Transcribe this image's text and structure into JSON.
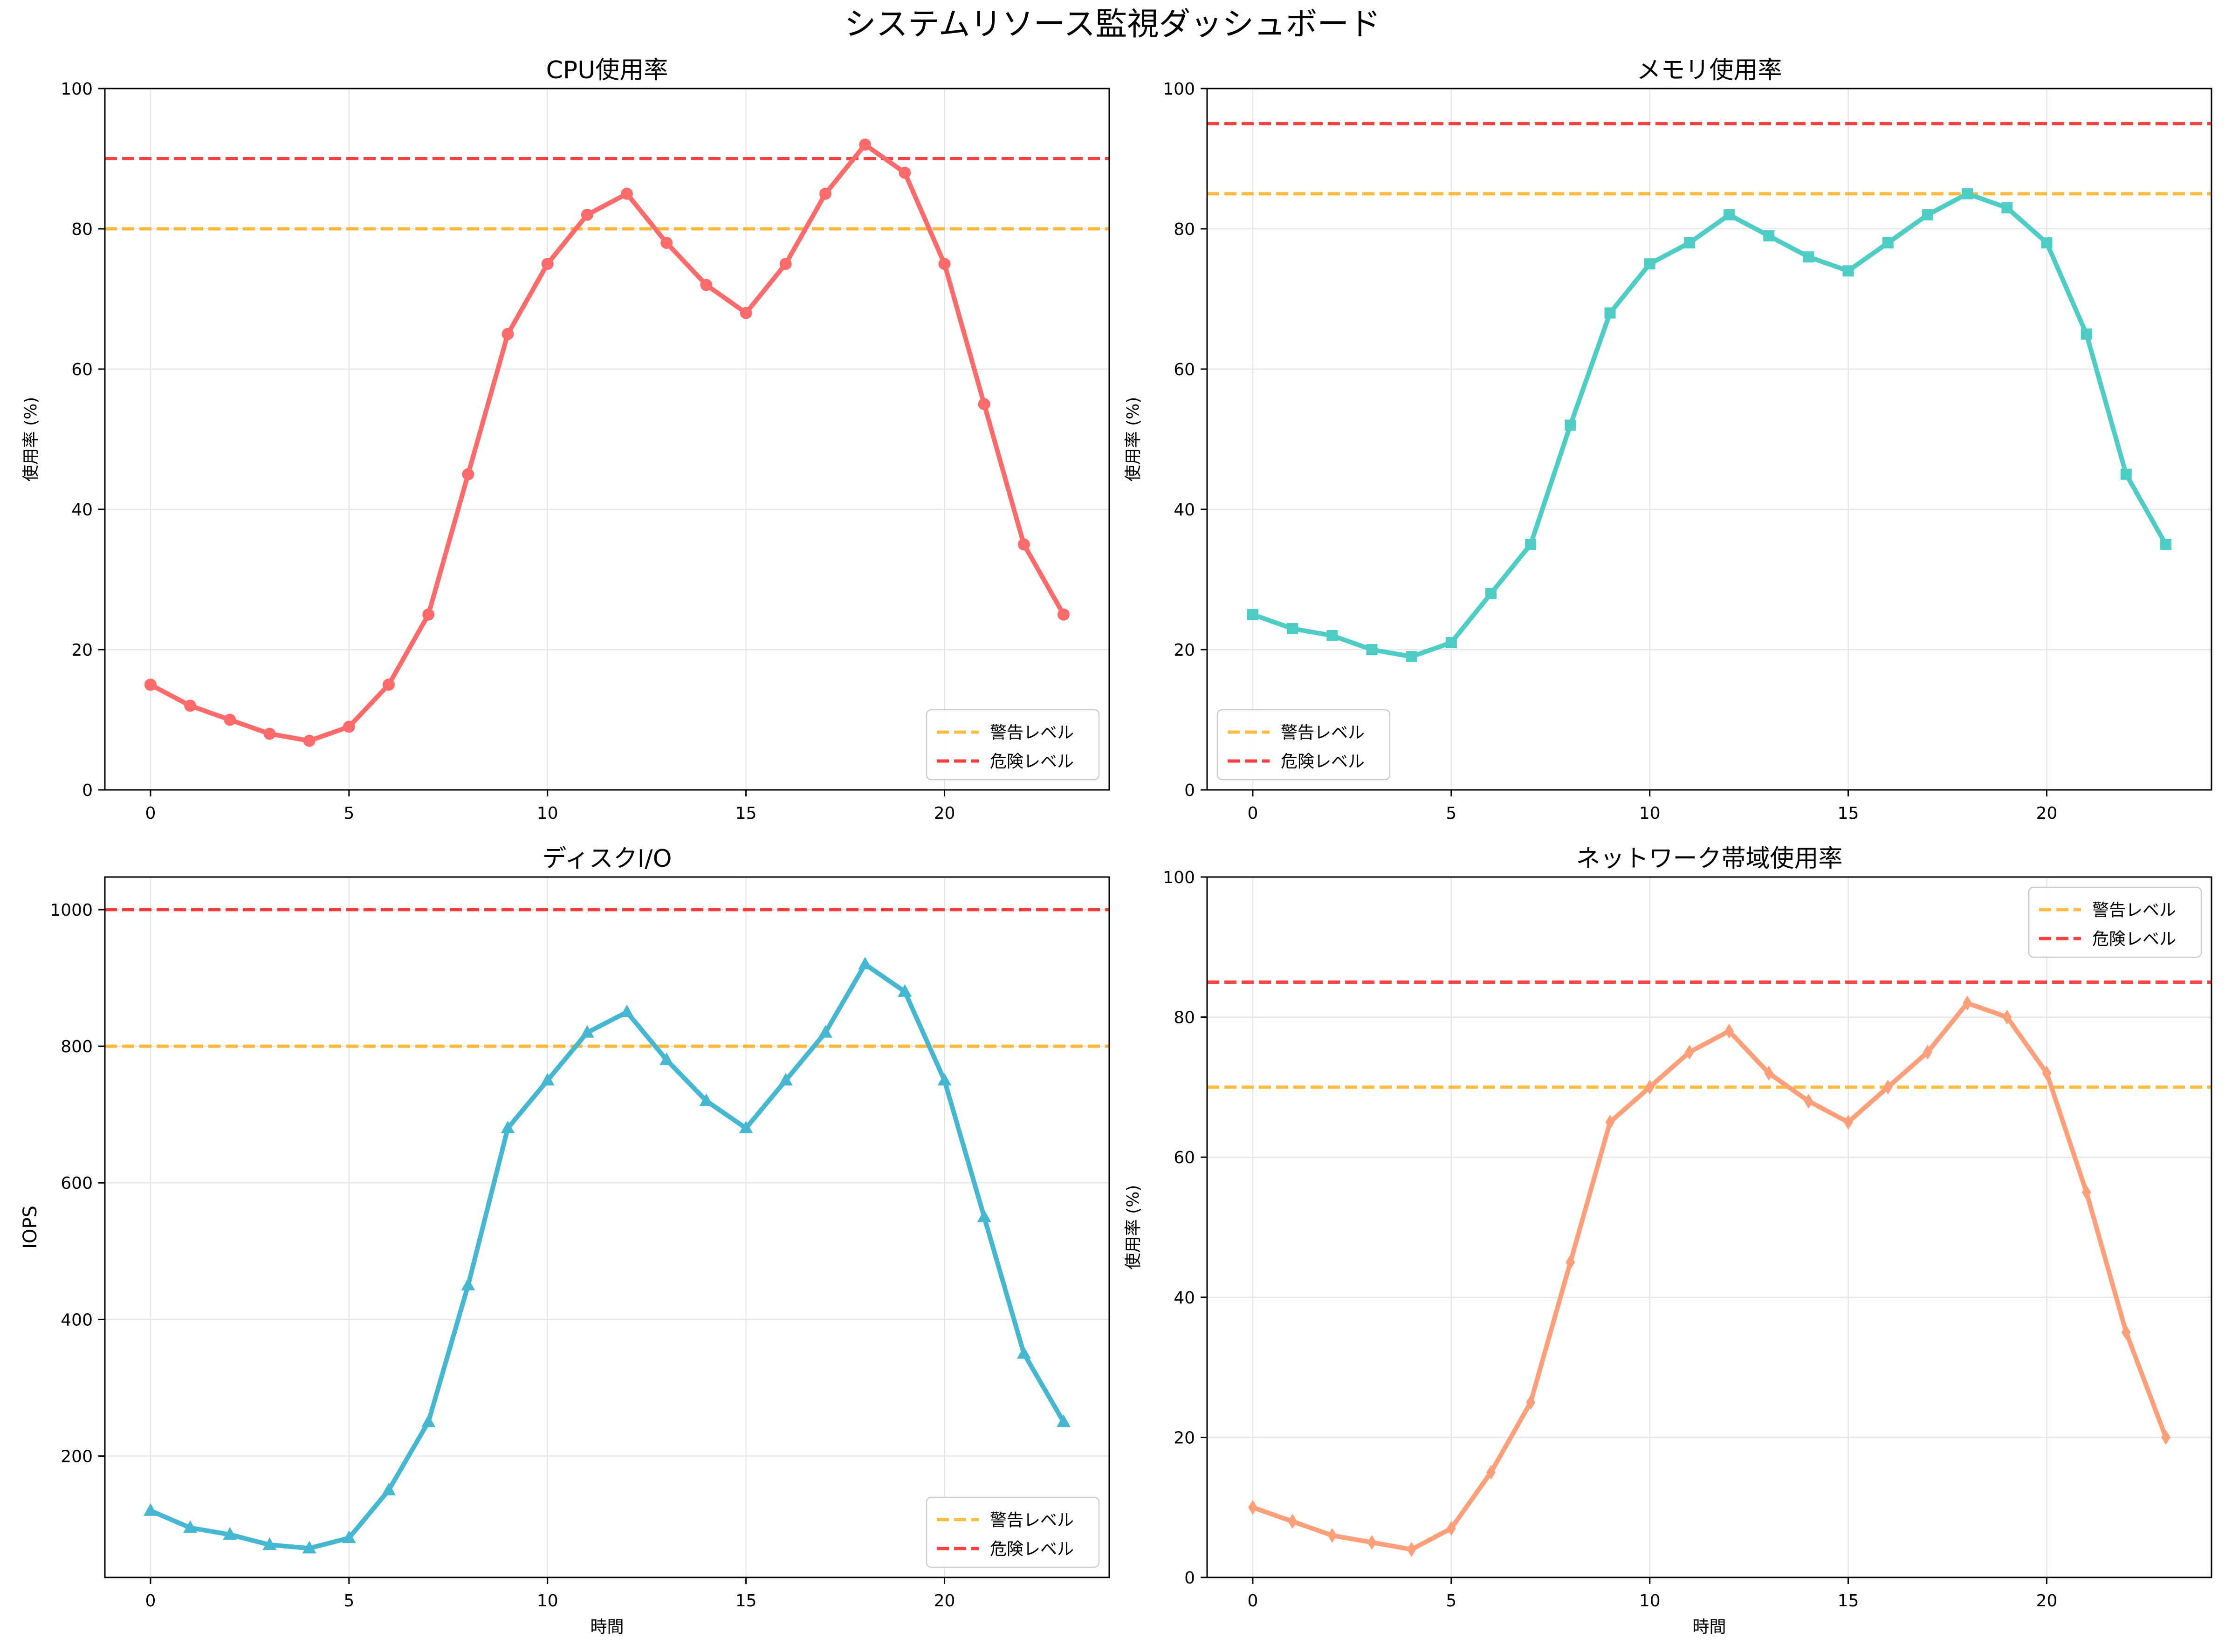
{
  "figure": {
    "suptitle": "システムリソース監視ダッシュボード"
  },
  "legend_labels": {
    "warning": "警告レベル",
    "danger": "危険レベル"
  },
  "colors": {
    "warning": "#ffa500",
    "danger": "#ff0000",
    "grid": "#e6e6e6"
  },
  "chart_data": [
    {
      "type": "line",
      "title": "CPU使用率",
      "xlabel": "",
      "ylabel": "使用率 (%)",
      "x": [
        0,
        1,
        2,
        3,
        4,
        5,
        6,
        7,
        8,
        9,
        10,
        11,
        12,
        13,
        14,
        15,
        16,
        17,
        18,
        19,
        20,
        21,
        22,
        23
      ],
      "xlim": [
        -1.15,
        24.15
      ],
      "ylim": [
        0,
        100
      ],
      "xticks": [
        0,
        5,
        10,
        15,
        20
      ],
      "yticks": [
        0,
        20,
        40,
        60,
        80,
        100
      ],
      "color": "#ff6b6b",
      "marker": "circle",
      "series": [
        {
          "values": [
            15,
            12,
            10,
            8,
            7,
            9,
            15,
            25,
            45,
            65,
            75,
            82,
            85,
            78,
            72,
            68,
            75,
            85,
            92,
            88,
            75,
            55,
            35,
            25
          ]
        }
      ],
      "thresholds": {
        "warning": 80,
        "danger": 90
      },
      "legend": "lower-right",
      "grid": true
    },
    {
      "type": "line",
      "title": "メモリ使用率",
      "xlabel": "",
      "ylabel": "使用率 (%)",
      "x": [
        0,
        1,
        2,
        3,
        4,
        5,
        6,
        7,
        8,
        9,
        10,
        11,
        12,
        13,
        14,
        15,
        16,
        17,
        18,
        19,
        20,
        21,
        22,
        23
      ],
      "xlim": [
        -1.15,
        24.15
      ],
      "ylim": [
        0,
        100
      ],
      "xticks": [
        0,
        5,
        10,
        15,
        20
      ],
      "yticks": [
        0,
        20,
        40,
        60,
        80,
        100
      ],
      "color": "#4ecdc4",
      "marker": "square",
      "series": [
        {
          "values": [
            25,
            23,
            22,
            20,
            19,
            21,
            28,
            35,
            52,
            68,
            75,
            78,
            82,
            79,
            76,
            74,
            78,
            82,
            85,
            83,
            78,
            65,
            45,
            35
          ]
        }
      ],
      "thresholds": {
        "warning": 85,
        "danger": 95
      },
      "legend": "lower-left",
      "grid": true
    },
    {
      "type": "line",
      "title": "ディスクI/O",
      "xlabel": "時間",
      "ylabel": "IOPS",
      "x": [
        0,
        1,
        2,
        3,
        4,
        5,
        6,
        7,
        8,
        9,
        10,
        11,
        12,
        13,
        14,
        15,
        16,
        17,
        18,
        19,
        20,
        21,
        22,
        23
      ],
      "xlim": [
        -1.15,
        24.15
      ],
      "ylim": [
        22.25,
        1047.75
      ],
      "xticks": [
        0,
        5,
        10,
        15,
        20
      ],
      "yticks": [
        200,
        400,
        600,
        800,
        1000
      ],
      "color": "#45b7d1",
      "marker": "triangle",
      "series": [
        {
          "values": [
            120,
            95,
            85,
            70,
            65,
            80,
            150,
            250,
            450,
            680,
            750,
            820,
            850,
            780,
            720,
            680,
            750,
            820,
            920,
            880,
            750,
            550,
            350,
            250
          ]
        }
      ],
      "thresholds": {
        "warning": 800,
        "danger": 1000
      },
      "legend": "lower-right",
      "grid": true
    },
    {
      "type": "line",
      "title": "ネットワーク帯域使用率",
      "xlabel": "時間",
      "ylabel": "使用率 (%)",
      "x": [
        0,
        1,
        2,
        3,
        4,
        5,
        6,
        7,
        8,
        9,
        10,
        11,
        12,
        13,
        14,
        15,
        16,
        17,
        18,
        19,
        20,
        21,
        22,
        23
      ],
      "xlim": [
        -1.15,
        24.15
      ],
      "ylim": [
        0,
        100
      ],
      "xticks": [
        0,
        5,
        10,
        15,
        20
      ],
      "yticks": [
        0,
        20,
        40,
        60,
        80,
        100
      ],
      "color": "#ffa07a",
      "marker": "diamond",
      "series": [
        {
          "values": [
            10,
            8,
            6,
            5,
            4,
            7,
            15,
            25,
            45,
            65,
            70,
            75,
            78,
            72,
            68,
            65,
            70,
            75,
            82,
            80,
            72,
            55,
            35,
            20
          ]
        }
      ],
      "thresholds": {
        "warning": 70,
        "danger": 85
      },
      "legend": "upper-right",
      "grid": true
    }
  ]
}
